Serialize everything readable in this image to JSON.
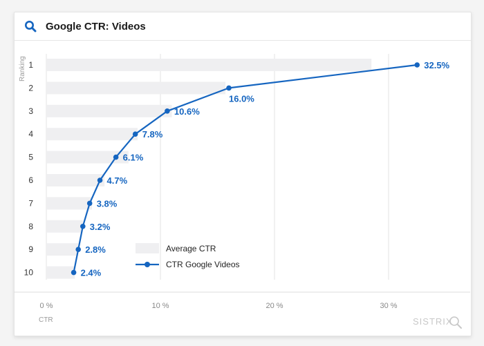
{
  "card": {
    "title": "Google CTR: Videos",
    "header_icon": "search-icon"
  },
  "colors": {
    "accent": "#1565c0",
    "bar": "#efeff1",
    "grid": "#e3e3e3"
  },
  "watermark": {
    "text": "SISTRIX",
    "icon": "magnifier-icon"
  },
  "chart_data": {
    "type": "bar",
    "orientation": "horizontal",
    "title": "Google CTR: Videos",
    "xlabel": "CTR",
    "ylabel": "Ranking",
    "xlim": [
      0,
      35
    ],
    "xticks": [
      0,
      10,
      20,
      30
    ],
    "xtick_labels": [
      "0 %",
      "10 %",
      "20 %",
      "30 %"
    ],
    "categories": [
      "1",
      "2",
      "3",
      "4",
      "5",
      "6",
      "7",
      "8",
      "9",
      "10"
    ],
    "series": [
      {
        "name": "Average CTR",
        "type": "bar",
        "values": [
          28.5,
          15.7,
          11.0,
          8.0,
          7.2,
          5.1,
          4.0,
          3.2,
          2.8,
          2.5
        ]
      },
      {
        "name": "CTR Google Videos",
        "type": "line",
        "values": [
          32.5,
          16.0,
          10.6,
          7.8,
          6.1,
          4.7,
          3.8,
          3.2,
          2.8,
          2.4
        ],
        "labels": [
          "32.5%",
          "16.0%",
          "10.6%",
          "7.8%",
          "6.1%",
          "4.7%",
          "3.8%",
          "3.2%",
          "2.8%",
          "2.4%"
        ]
      }
    ],
    "legend": {
      "position": "bottom-center",
      "items": [
        "Average CTR",
        "CTR Google Videos"
      ]
    },
    "grid": true
  }
}
